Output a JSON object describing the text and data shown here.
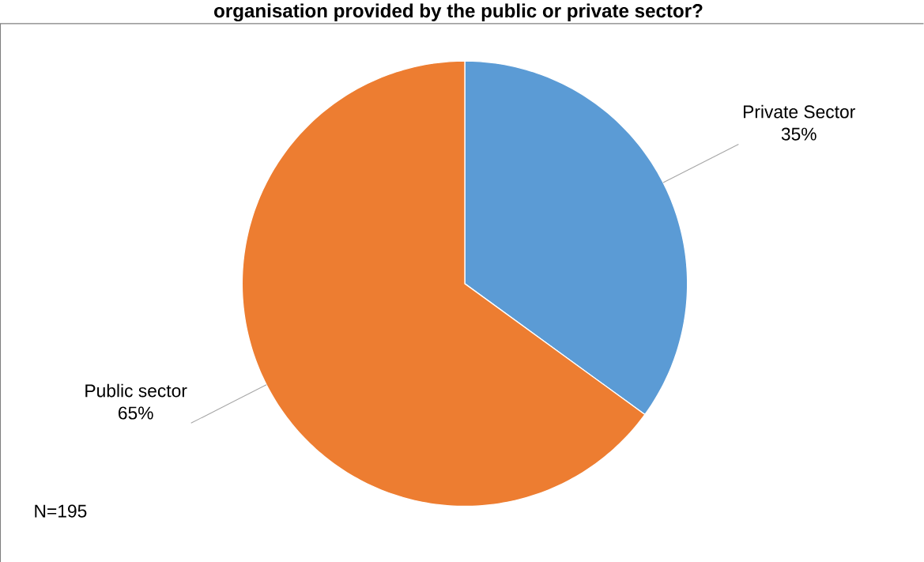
{
  "chart_data": {
    "type": "pie",
    "title": "organisation provided by the public or private sector?",
    "categories": [
      "Private Sector",
      "Public sector"
    ],
    "values": [
      35,
      65
    ],
    "colors": [
      "#5b9bd5",
      "#ed7d31"
    ],
    "value_labels": [
      "35%",
      "65%"
    ],
    "annotations": [
      "N=195"
    ]
  }
}
